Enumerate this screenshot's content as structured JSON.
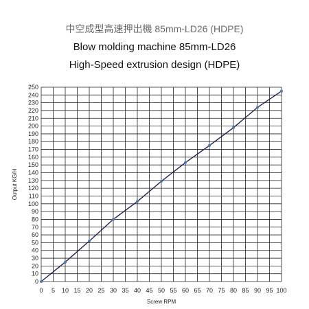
{
  "chart_data": {
    "type": "line",
    "title": "中空成型高速押出機 85mm-LD26 (HDPE)",
    "subtitle_1": "Blow molding machine 85mm-LD26",
    "subtitle_2": "High-Speed extrusion design (HDPE)",
    "xlabel": "Screw RPM",
    "ylabel": "Output KG/H",
    "xlim": [
      0,
      100
    ],
    "ylim": [
      0,
      250
    ],
    "x_ticks": [
      0,
      5,
      10,
      15,
      20,
      25,
      30,
      35,
      40,
      45,
      50,
      55,
      60,
      65,
      70,
      75,
      80,
      85,
      90,
      95,
      100
    ],
    "y_ticks": [
      0,
      10,
      20,
      30,
      40,
      50,
      60,
      70,
      80,
      90,
      100,
      110,
      120,
      130,
      140,
      150,
      160,
      170,
      180,
      190,
      200,
      210,
      220,
      230,
      240,
      250
    ],
    "grid": true,
    "legend": "none",
    "series": [
      {
        "color": "#1f1f4f",
        "marker_color": "#4a7ab8",
        "x": [
          0,
          10,
          20,
          30,
          40,
          50,
          60,
          70,
          80,
          90,
          100
        ],
        "y": [
          0,
          25,
          52,
          80,
          103,
          129,
          153,
          175,
          198,
          224,
          245
        ]
      }
    ]
  }
}
